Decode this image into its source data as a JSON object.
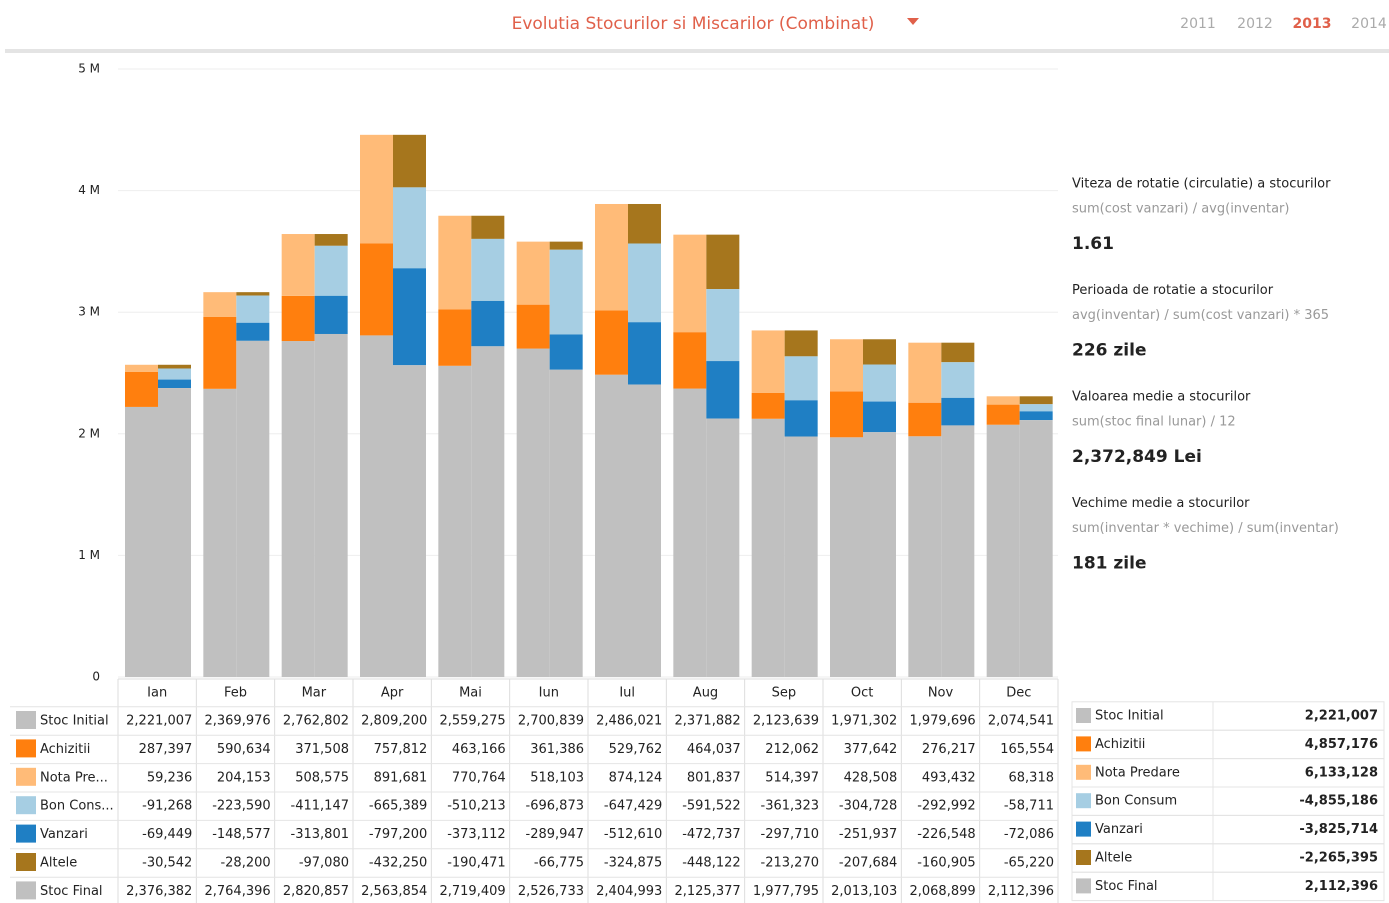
{
  "header": {
    "title": "Evolutia Stocurilor si Miscarilor (Combinat)",
    "years": [
      "2011",
      "2012",
      "2013",
      "2014"
    ],
    "selected_year": "2013"
  },
  "chart_data": {
    "type": "bar",
    "categories": [
      "Ian",
      "Feb",
      "Mar",
      "Apr",
      "Mai",
      "Iun",
      "Iul",
      "Aug",
      "Sep",
      "Oct",
      "Nov",
      "Dec"
    ],
    "ylim": [
      0,
      5000000
    ],
    "yticks": [
      0,
      {
        "value": 1000000,
        "label": "1 M"
      },
      {
        "value": 2000000,
        "label": "2 M"
      },
      {
        "value": 3000000,
        "label": "3 M"
      },
      {
        "value": 4000000,
        "label": "4 M"
      },
      {
        "value": 5000000,
        "label": "5 M"
      }
    ],
    "grid": true,
    "series": [
      {
        "name": "Stoc Initial",
        "color": "#c0c0c0",
        "values": [
          2221007,
          2369976,
          2762802,
          2809200,
          2559275,
          2700839,
          2486021,
          2371882,
          2123639,
          1971302,
          1979696,
          2074541
        ],
        "value_labels": [
          "2,221,007",
          "2,369,976",
          "2,762,802",
          "2,809,200",
          "2,559,275",
          "2,700,839",
          "2,486,021",
          "2,371,882",
          "2,123,639",
          "1,971,302",
          "1,979,696",
          "2,074,541"
        ]
      },
      {
        "name": "Achizitii",
        "color": "#ff7f0e",
        "values": [
          287397,
          590634,
          371508,
          757812,
          463166,
          361386,
          529762,
          464037,
          212062,
          377642,
          276217,
          165554
        ],
        "value_labels": [
          "287,397",
          "590,634",
          "371,508",
          "757,812",
          "463,166",
          "361,386",
          "529,762",
          "464,037",
          "212,062",
          "377,642",
          "276,217",
          "165,554"
        ]
      },
      {
        "name": "Nota Pre...",
        "color": "#ffbb78",
        "values": [
          59236,
          204153,
          508575,
          891681,
          770764,
          518103,
          874124,
          801837,
          514397,
          428508,
          493432,
          68318
        ],
        "value_labels": [
          "59,236",
          "204,153",
          "508,575",
          "891,681",
          "770,764",
          "518,103",
          "874,124",
          "801,837",
          "514,397",
          "428,508",
          "493,432",
          "68,318"
        ]
      },
      {
        "name": "Bon Cons...",
        "color": "#a6cee3",
        "values": [
          -91268,
          -223590,
          -411147,
          -665389,
          -510213,
          -696873,
          -647429,
          -591522,
          -361323,
          -304728,
          -292992,
          -58711
        ],
        "value_labels": [
          "-91,268",
          "-223,590",
          "-411,147",
          "-665,389",
          "-510,213",
          "-696,873",
          "-647,429",
          "-591,522",
          "-361,323",
          "-304,728",
          "-292,992",
          "-58,711"
        ]
      },
      {
        "name": "Vanzari",
        "color": "#1f7fc4",
        "values": [
          -69449,
          -148577,
          -313801,
          -797200,
          -373112,
          -289947,
          -512610,
          -472737,
          -297710,
          -251937,
          -226548,
          -72086
        ],
        "value_labels": [
          "-69,449",
          "-148,577",
          "-313,801",
          "-797,200",
          "-373,112",
          "-289,947",
          "-512,610",
          "-472,737",
          "-297,710",
          "-251,937",
          "-226,548",
          "-72,086"
        ]
      },
      {
        "name": "Altele",
        "color": "#a6761d",
        "values": [
          -30542,
          -28200,
          -97080,
          -432250,
          -190471,
          -66775,
          -324875,
          -448122,
          -213270,
          -207684,
          -160905,
          -65220
        ],
        "value_labels": [
          "-30,542",
          "-28,200",
          "-97,080",
          "-432,250",
          "-190,471",
          "-66,775",
          "-324,875",
          "-448,122",
          "-213,270",
          "-207,684",
          "-160,905",
          "-65,220"
        ]
      },
      {
        "name": "Stoc Final",
        "color": "#c0c0c0",
        "values": [
          2376382,
          2764396,
          2820857,
          2563854,
          2719409,
          2526733,
          2404993,
          2125377,
          1977795,
          2013103,
          2068899,
          2112396
        ],
        "value_labels": [
          "2,376,382",
          "2,764,396",
          "2,820,857",
          "2,563,854",
          "2,719,409",
          "2,526,733",
          "2,404,993",
          "2,125,377",
          "1,977,795",
          "2,013,103",
          "2,068,899",
          "2,112,396"
        ]
      }
    ]
  },
  "kpis": [
    {
      "title": "Viteza de rotatie (circulatie) a stocurilor",
      "formula": "sum(cost vanzari) / avg(inventar)",
      "value": "1.61"
    },
    {
      "title": "Perioada de rotatie a stocurilor",
      "formula": "avg(inventar) / sum(cost vanzari) * 365",
      "value": "226 zile"
    },
    {
      "title": "Valoarea medie a stocurilor",
      "formula": "sum(stoc final lunar) / 12",
      "value": "2,372,849 Lei"
    },
    {
      "title": "Vechime medie a stocurilor",
      "formula": "sum(inventar * vechime) / sum(inventar)",
      "value": "181 zile"
    }
  ],
  "summary": [
    {
      "name": "Stoc Initial",
      "value": "2,221,007"
    },
    {
      "name": "Achizitii",
      "value": "4,857,176"
    },
    {
      "name": "Nota Predare",
      "value": "6,133,128"
    },
    {
      "name": "Bon Consum",
      "value": "-4,855,186"
    },
    {
      "name": "Vanzari",
      "value": "-3,825,714"
    },
    {
      "name": "Altele",
      "value": "-2,265,395"
    },
    {
      "name": "Stoc Final",
      "value": "2,112,396"
    }
  ]
}
